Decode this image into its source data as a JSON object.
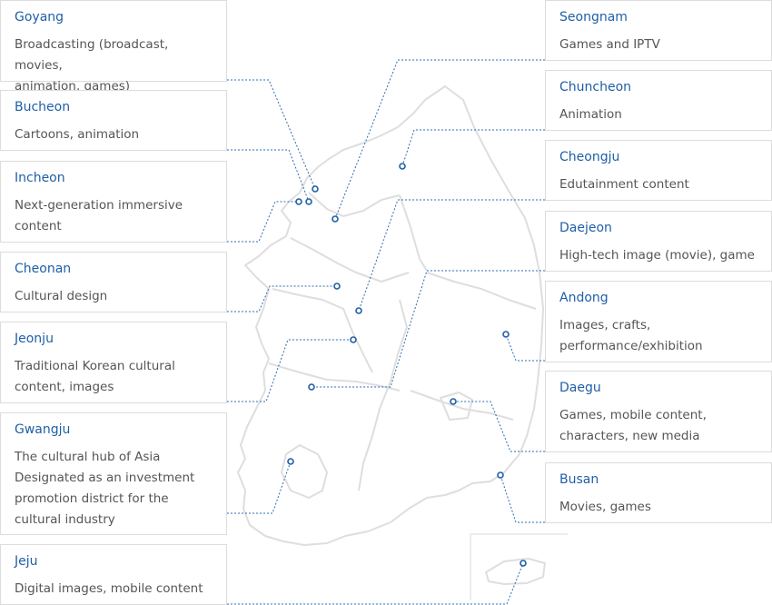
{
  "colors": {
    "accent": "#1f5fa6",
    "text": "#555555",
    "border": "#dcdcdc",
    "map_stroke": "#dedede",
    "leader": "#2b6cb0"
  },
  "regions": [
    {
      "id": "goyang",
      "name": "Goyang",
      "desc": [
        "Broadcasting (broadcast, movies,",
        "animation, games)"
      ]
    },
    {
      "id": "bucheon",
      "name": "Bucheon",
      "desc": [
        "Cartoons, animation"
      ]
    },
    {
      "id": "incheon",
      "name": "Incheon",
      "desc": [
        "Next-generation immersive",
        "content"
      ]
    },
    {
      "id": "cheonan",
      "name": "Cheonan",
      "desc": [
        "Cultural design"
      ]
    },
    {
      "id": "jeonju",
      "name": "Jeonju",
      "desc": [
        "Traditional Korean cultural",
        "content, images"
      ]
    },
    {
      "id": "gwangju",
      "name": "Gwangju",
      "desc": [
        "The cultural hub of Asia",
        "Designated as an investment",
        "promotion district for the",
        "cultural industry"
      ]
    },
    {
      "id": "jeju",
      "name": "Jeju",
      "desc": [
        "Digital images, mobile content"
      ]
    },
    {
      "id": "seongnam",
      "name": "Seongnam",
      "desc": [
        "Games and IPTV"
      ]
    },
    {
      "id": "chuncheon",
      "name": "Chuncheon",
      "desc": [
        "Animation"
      ]
    },
    {
      "id": "cheongju",
      "name": "Cheongju",
      "desc": [
        "Edutainment content"
      ]
    },
    {
      "id": "daejeon",
      "name": "Daejeon",
      "desc": [
        "High-tech image (movie), game"
      ]
    },
    {
      "id": "andong",
      "name": "Andong",
      "desc": [
        "Images, crafts,",
        "performance/exhibition"
      ]
    },
    {
      "id": "daegu",
      "name": "Daegu",
      "desc": [
        "Games, mobile content,",
        "characters, new media"
      ]
    },
    {
      "id": "busan",
      "name": "Busan",
      "desc": [
        "Movies, games"
      ]
    }
  ]
}
